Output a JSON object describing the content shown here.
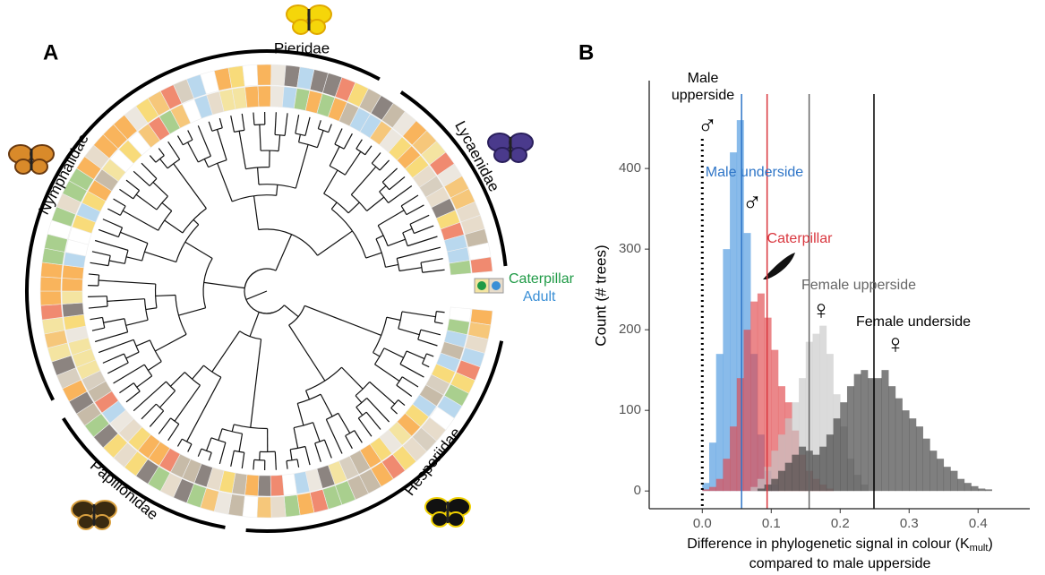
{
  "panel_a": {
    "label": "A",
    "families": [
      "Pieridae",
      "Lycaenidae",
      "Hesperiidae",
      "Papilionidae",
      "Nymphalidae"
    ],
    "ring_legend": {
      "caterpillar": "Caterpillar",
      "adult": "Adult"
    }
  },
  "chart_data": {
    "type": "histogram",
    "panel_label": "B",
    "ylabel": "Count (# trees)",
    "xlabel": {
      "line1": "Difference in phylogenetic signal in colour (K",
      "subscript": "mult",
      "line1_end": ")",
      "line2": "compared to male upperside"
    },
    "xlim": [
      -0.077,
      0.475
    ],
    "ylim": [
      -22,
      509
    ],
    "xticks": [
      {
        "value": 0,
        "label": "0.0"
      },
      0.1,
      0.2,
      0.3,
      0.4
    ],
    "yticks": [
      0,
      100,
      200,
      300,
      400
    ],
    "bins": [
      0,
      0.01,
      0.02,
      0.03,
      0.04,
      0.05,
      0.06,
      0.07,
      0.08,
      0.09,
      0.1,
      0.11,
      0.12,
      0.13,
      0.14,
      0.15,
      0.16,
      0.17,
      0.18,
      0.19,
      0.2,
      0.21,
      0.22,
      0.23,
      0.24,
      0.25,
      0.26,
      0.27,
      0.28,
      0.29,
      0.3,
      0.31,
      0.32,
      0.33,
      0.34,
      0.35,
      0.36,
      0.37,
      0.38,
      0.39,
      0.4,
      0.41,
      0.42
    ],
    "series": [
      {
        "name": "Male upperside",
        "symbol": "♂",
        "color": "#000000",
        "mean": 0
      },
      {
        "name": "Male underside",
        "symbol": "♂",
        "color": "#4a97de",
        "text_color": "#2e75c7",
        "mean": 0.057,
        "values": [
          10,
          60,
          170,
          300,
          420,
          460,
          320,
          170,
          70,
          25,
          8,
          0,
          0,
          0,
          0,
          0,
          0,
          0,
          0,
          0,
          0,
          0,
          0,
          0,
          0,
          0,
          0,
          0,
          0,
          0,
          0,
          0,
          0,
          0,
          0,
          0,
          0,
          0,
          0,
          0,
          0,
          0
        ]
      },
      {
        "name": "Caterpillar",
        "color": "#e0474c",
        "text_color": "#d9363e",
        "mean": 0.094,
        "values": [
          2,
          5,
          15,
          40,
          80,
          140,
          200,
          235,
          245,
          215,
          175,
          130,
          110,
          75,
          45,
          25,
          15,
          8,
          3,
          0,
          0,
          0,
          0,
          0,
          0,
          0,
          0,
          0,
          0,
          0,
          0,
          0,
          0,
          0,
          0,
          0,
          0,
          0,
          0,
          0,
          0,
          0
        ]
      },
      {
        "name": "Female upperside",
        "symbol": "♀",
        "color": "#c8c8c8",
        "text_color": "#666666",
        "mean": 0.155,
        "values": [
          0,
          0,
          0,
          0,
          0,
          0,
          0,
          5,
          15,
          30,
          50,
          70,
          90,
          110,
          140,
          185,
          195,
          205,
          170,
          120,
          80,
          40,
          20,
          8,
          0,
          0,
          0,
          0,
          0,
          0,
          0,
          0,
          0,
          0,
          0,
          0,
          0,
          0,
          0,
          0,
          0,
          0
        ]
      },
      {
        "name": "Female underside",
        "symbol": "♀",
        "color": "#3a3a3a",
        "text_color": "#000000",
        "mean": 0.249,
        "values": [
          0,
          0,
          0,
          0,
          0,
          0,
          0,
          0,
          3,
          8,
          15,
          25,
          35,
          45,
          55,
          50,
          45,
          55,
          70,
          90,
          110,
          130,
          145,
          150,
          140,
          140,
          150,
          130,
          115,
          100,
          90,
          80,
          65,
          50,
          40,
          30,
          25,
          15,
          10,
          6,
          3,
          2
        ]
      }
    ]
  }
}
